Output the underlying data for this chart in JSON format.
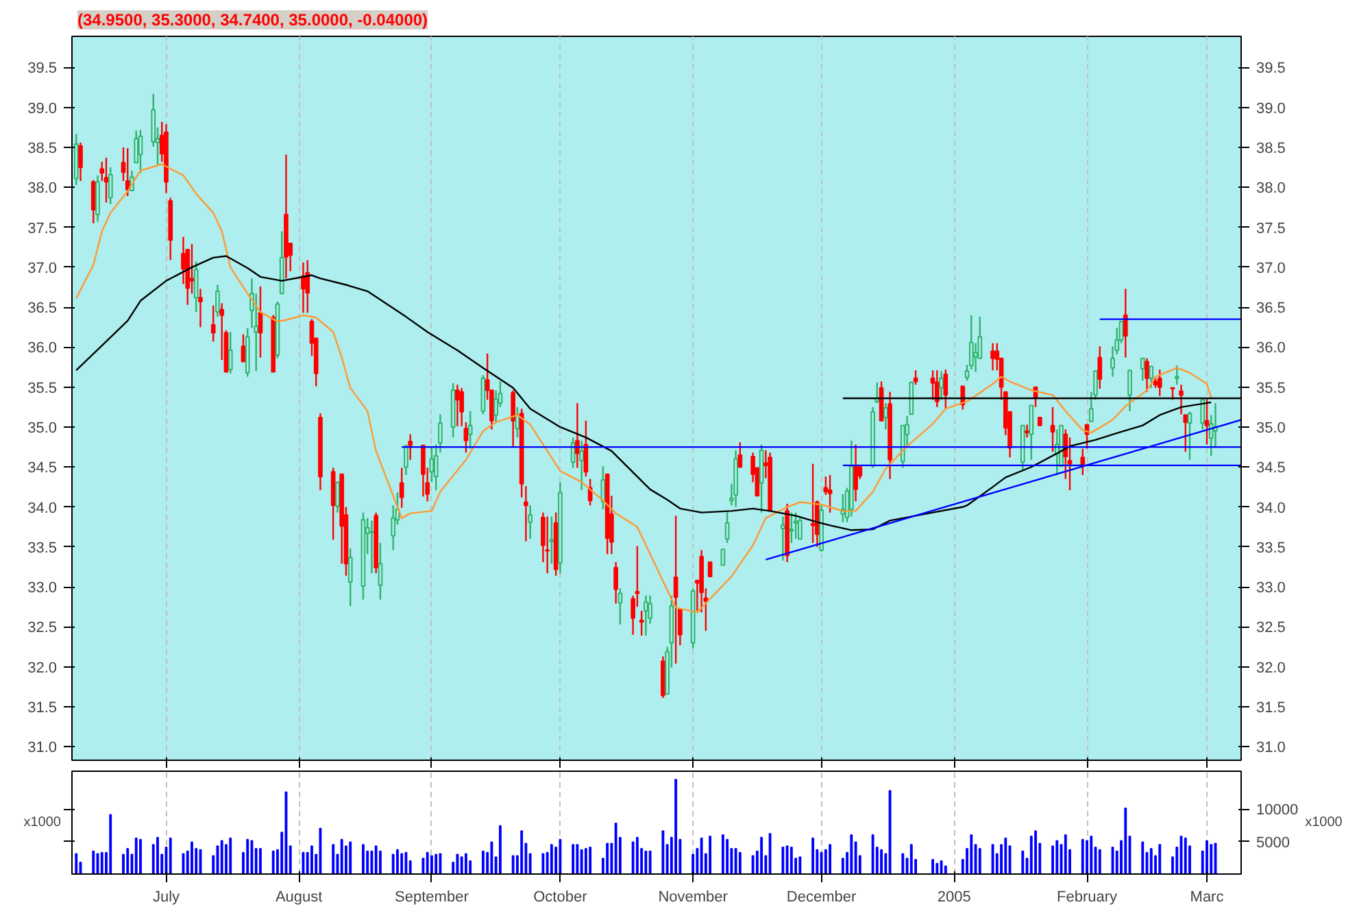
{
  "chart_data": [
    {
      "type": "candlestick",
      "title": "(34.9500, 35.3000, 34.7400, 35.0000, -0.04000)",
      "x": [
        "2004-06-10",
        "2004-06-11",
        "2004-06-14",
        "2004-06-15",
        "2004-06-16",
        "2004-06-17",
        "2004-06-18",
        "2004-06-21",
        "2004-06-22",
        "2004-06-23",
        "2004-06-24",
        "2004-06-25",
        "2004-06-28",
        "2004-06-29",
        "2004-06-30",
        "2004-07-01",
        "2004-07-02",
        "2004-07-05",
        "2004-07-06",
        "2004-07-07",
        "2004-07-08",
        "2004-07-09",
        "2004-07-12",
        "2004-07-13",
        "2004-07-14",
        "2004-07-15",
        "2004-07-16",
        "2004-07-19",
        "2004-07-20",
        "2004-07-21",
        "2004-07-22",
        "2004-07-23",
        "2004-07-26",
        "2004-07-27",
        "2004-07-28",
        "2004-07-29",
        "2004-07-30",
        "2004-08-02",
        "2004-08-03",
        "2004-08-04",
        "2004-08-05",
        "2004-08-06",
        "2004-08-09",
        "2004-08-10",
        "2004-08-11",
        "2004-08-12",
        "2004-08-13",
        "2004-08-16",
        "2004-08-17",
        "2004-08-18",
        "2004-08-19",
        "2004-08-20",
        "2004-08-23",
        "2004-08-24",
        "2004-08-25",
        "2004-08-26",
        "2004-08-27",
        "2004-08-30",
        "2004-08-31",
        "2004-09-01",
        "2004-09-02",
        "2004-09-03",
        "2004-09-06",
        "2004-09-07",
        "2004-09-08",
        "2004-09-09",
        "2004-09-10",
        "2004-09-13",
        "2004-09-14",
        "2004-09-15",
        "2004-09-16",
        "2004-09-17",
        "2004-09-20",
        "2004-09-21",
        "2004-09-22",
        "2004-09-23",
        "2004-09-24",
        "2004-09-27",
        "2004-09-28",
        "2004-09-29",
        "2004-09-30",
        "2004-10-01",
        "2004-10-04",
        "2004-10-05",
        "2004-10-06",
        "2004-10-07",
        "2004-10-08",
        "2004-10-11",
        "2004-10-12",
        "2004-10-13",
        "2004-10-14",
        "2004-10-15",
        "2004-10-18",
        "2004-10-19",
        "2004-10-20",
        "2004-10-21",
        "2004-10-22",
        "2004-10-25",
        "2004-10-26",
        "2004-10-27",
        "2004-10-28",
        "2004-10-29",
        "2004-11-01",
        "2004-11-02",
        "2004-11-03",
        "2004-11-04",
        "2004-11-05",
        "2004-11-08",
        "2004-11-09",
        "2004-11-10",
        "2004-11-11",
        "2004-11-12",
        "2004-11-15",
        "2004-11-16",
        "2004-11-17",
        "2004-11-18",
        "2004-11-19",
        "2004-11-22",
        "2004-11-23",
        "2004-11-24",
        "2004-11-25",
        "2004-11-26",
        "2004-11-29",
        "2004-11-30",
        "2004-12-01",
        "2004-12-02",
        "2004-12-03",
        "2004-12-06",
        "2004-12-07",
        "2004-12-08",
        "2004-12-09",
        "2004-12-10",
        "2004-12-13",
        "2004-12-14",
        "2004-12-15",
        "2004-12-16",
        "2004-12-17",
        "2004-12-20",
        "2004-12-21",
        "2004-12-22",
        "2004-12-23",
        "2004-12-27",
        "2004-12-28",
        "2004-12-29",
        "2004-12-30",
        "2005-01-03",
        "2005-01-04",
        "2005-01-05",
        "2005-01-06",
        "2005-01-07",
        "2005-01-10",
        "2005-01-11",
        "2005-01-12",
        "2005-01-13",
        "2005-01-14",
        "2005-01-17",
        "2005-01-18",
        "2005-01-19",
        "2005-01-20",
        "2005-01-21",
        "2005-01-24",
        "2005-01-25",
        "2005-01-26",
        "2005-01-27",
        "2005-01-28",
        "2005-01-31",
        "2005-02-01",
        "2005-02-02",
        "2005-02-03",
        "2005-02-04",
        "2005-02-07",
        "2005-02-08",
        "2005-02-09",
        "2005-02-10",
        "2005-02-11",
        "2005-02-14",
        "2005-02-15",
        "2005-02-16",
        "2005-02-17",
        "2005-02-18",
        "2005-02-21",
        "2005-02-22",
        "2005-02-23",
        "2005-02-24",
        "2005-02-25",
        "2005-02-28",
        "2005-03-01",
        "2005-03-02",
        "2005-03-03"
      ],
      "ohlc": [
        [
          38.11,
          38.67,
          38.03,
          38.54
        ],
        [
          38.52,
          38.56,
          38.08,
          38.25
        ],
        [
          38.07,
          38.09,
          37.55,
          37.72
        ],
        [
          37.66,
          38.15,
          37.57,
          38.07
        ],
        [
          38.23,
          38.32,
          38.08,
          38.18
        ],
        [
          38.12,
          38.37,
          37.81,
          38.07
        ],
        [
          37.87,
          38.25,
          37.79,
          38.16
        ],
        [
          38.31,
          38.5,
          38.08,
          38.19
        ],
        [
          38.08,
          38.49,
          37.89,
          37.97
        ],
        [
          37.96,
          38.21,
          37.96,
          38.13
        ],
        [
          38.31,
          38.71,
          38.31,
          38.61
        ],
        [
          38.41,
          38.72,
          38.18,
          38.64
        ],
        [
          38.57,
          39.17,
          38.51,
          38.97
        ],
        [
          38.56,
          38.75,
          38.27,
          38.61
        ],
        [
          38.65,
          38.82,
          38.32,
          38.42
        ],
        [
          38.69,
          38.79,
          37.93,
          38.07
        ],
        [
          37.83,
          37.87,
          37.09,
          37.34
        ],
        [
          37.17,
          37.38,
          36.79,
          36.98
        ],
        [
          37.22,
          37.23,
          36.53,
          36.74
        ],
        [
          36.86,
          37.29,
          36.67,
          36.83
        ],
        [
          36.62,
          37.07,
          36.44,
          36.97
        ],
        [
          36.62,
          36.73,
          36.25,
          36.57
        ],
        [
          36.28,
          36.52,
          36.07,
          36.18
        ],
        [
          36.44,
          36.78,
          36.38,
          36.7
        ],
        [
          36.47,
          36.55,
          35.84,
          36.4
        ],
        [
          36.18,
          36.21,
          35.69,
          35.69
        ],
        [
          35.72,
          36.19,
          35.67,
          35.96
        ],
        [
          36.01,
          36.16,
          35.82,
          35.82
        ],
        [
          35.68,
          36.24,
          35.63,
          36.13
        ],
        [
          36.46,
          36.86,
          36.24,
          36.67
        ],
        [
          36.19,
          36.67,
          35.7,
          36.26
        ],
        [
          36.43,
          36.76,
          35.87,
          36.18
        ],
        [
          36.37,
          36.4,
          35.69,
          35.69
        ],
        [
          35.9,
          36.57,
          35.86,
          36.54
        ],
        [
          36.67,
          37.45,
          36.67,
          37.12
        ],
        [
          37.66,
          38.41,
          36.86,
          37.13
        ],
        [
          37.3,
          37.3,
          36.95,
          37.15
        ],
        [
          36.89,
          37.06,
          36.43,
          36.73
        ],
        [
          36.93,
          37.09,
          36.43,
          36.68
        ],
        [
          36.32,
          36.35,
          35.89,
          36.05
        ],
        [
          36.11,
          36.11,
          35.51,
          35.67
        ],
        [
          35.12,
          35.17,
          34.21,
          34.38
        ],
        [
          34.44,
          34.49,
          33.59,
          34.02
        ],
        [
          34.01,
          34.31,
          33.93,
          34.31
        ],
        [
          34.41,
          34.41,
          33.29,
          33.76
        ],
        [
          33.9,
          34.0,
          33.14,
          33.29
        ],
        [
          33.06,
          33.48,
          32.76,
          33.37
        ],
        [
          33.01,
          33.93,
          32.84,
          33.84
        ],
        [
          33.67,
          33.86,
          33.41,
          33.74
        ],
        [
          33.68,
          33.83,
          33.17,
          33.69
        ],
        [
          33.89,
          33.93,
          33.17,
          33.24
        ],
        [
          33.02,
          33.55,
          32.84,
          33.29
        ],
        [
          33.64,
          34.02,
          33.46,
          33.86
        ],
        [
          33.84,
          34.18,
          33.78,
          33.97
        ],
        [
          34.3,
          34.49,
          33.99,
          34.12
        ],
        [
          34.5,
          34.78,
          34.4,
          34.76
        ],
        [
          34.82,
          34.91,
          34.59,
          34.77
        ],
        [
          34.77,
          34.77,
          34.13,
          34.41
        ],
        [
          34.3,
          34.49,
          34.07,
          34.16
        ],
        [
          34.44,
          34.74,
          34.31,
          34.6
        ],
        [
          34.38,
          34.78,
          34.21,
          34.64
        ],
        [
          34.8,
          35.16,
          34.68,
          35.05
        ],
        [
          35.0,
          35.55,
          34.87,
          35.46
        ],
        [
          35.46,
          35.53,
          35.01,
          35.34
        ],
        [
          35.44,
          35.49,
          35.01,
          35.19
        ],
        [
          34.98,
          35.06,
          34.68,
          34.83
        ],
        [
          34.91,
          35.2,
          34.73,
          35.02
        ],
        [
          35.2,
          35.65,
          35.16,
          35.61
        ],
        [
          35.59,
          35.92,
          35.34,
          35.46
        ],
        [
          35.46,
          35.46,
          34.97,
          35.08
        ],
        [
          35.15,
          35.46,
          35.06,
          35.35
        ],
        [
          35.3,
          35.57,
          35.25,
          35.42
        ],
        [
          35.43,
          35.46,
          34.75,
          35.08
        ],
        [
          34.98,
          35.25,
          34.87,
          35.15
        ],
        [
          35.17,
          35.23,
          34.12,
          34.29
        ],
        [
          34.06,
          34.26,
          33.57,
          34.02
        ],
        [
          33.81,
          34.02,
          33.6,
          33.9
        ],
        [
          33.87,
          33.93,
          33.31,
          33.52
        ],
        [
          33.46,
          33.88,
          33.17,
          33.45
        ],
        [
          33.57,
          33.88,
          33.29,
          33.59
        ],
        [
          33.8,
          33.93,
          33.14,
          33.22
        ],
        [
          33.3,
          34.31,
          33.17,
          34.18
        ],
        [
          34.56,
          34.87,
          34.49,
          34.8
        ],
        [
          34.83,
          35.3,
          34.49,
          34.67
        ],
        [
          34.58,
          34.83,
          34.21,
          34.7
        ],
        [
          34.78,
          35.08,
          34.38,
          34.44
        ],
        [
          34.24,
          34.35,
          34.02,
          34.08
        ],
        [
          34.07,
          34.51,
          33.97,
          34.34
        ],
        [
          34.41,
          34.41,
          33.41,
          33.61
        ],
        [
          33.91,
          34.14,
          33.41,
          33.56
        ],
        [
          33.24,
          33.31,
          32.79,
          32.97
        ],
        [
          32.8,
          32.98,
          32.53,
          32.92
        ],
        [
          32.85,
          32.89,
          32.4,
          32.61
        ],
        [
          32.94,
          33.51,
          32.75,
          32.92
        ],
        [
          32.58,
          32.7,
          32.39,
          32.56
        ],
        [
          32.7,
          32.89,
          32.39,
          32.81
        ],
        [
          32.61,
          32.89,
          32.54,
          32.79
        ],
        [
          32.07,
          32.13,
          31.61,
          31.64
        ],
        [
          31.66,
          32.25,
          31.66,
          32.19
        ],
        [
          32.3,
          32.89,
          31.99,
          32.76
        ],
        [
          33.12,
          33.89,
          32.04,
          32.87
        ],
        [
          32.72,
          32.72,
          32.27,
          32.4
        ],
        [
          32.3,
          32.98,
          32.23,
          32.95
        ],
        [
          33.08,
          33.08,
          32.7,
          33.05
        ],
        [
          33.38,
          33.46,
          32.68,
          32.93
        ],
        [
          32.86,
          32.98,
          32.45,
          32.82
        ],
        [
          33.31,
          33.31,
          33.13,
          33.13
        ],
        [
          33.27,
          33.47,
          33.27,
          33.47
        ],
        [
          33.6,
          33.93,
          33.55,
          33.8
        ],
        [
          34.08,
          34.29,
          34.02,
          34.11
        ],
        [
          34.15,
          34.71,
          34.0,
          34.6
        ],
        [
          34.65,
          34.81,
          34.49,
          34.5
        ],
        [
          34.63,
          34.68,
          34.31,
          34.41
        ],
        [
          34.49,
          34.49,
          34.14,
          34.14
        ],
        [
          34.3,
          34.78,
          33.93,
          34.71
        ],
        [
          34.55,
          34.71,
          34.36,
          34.52
        ],
        [
          34.62,
          34.68,
          33.95,
          33.95
        ],
        [
          33.73,
          33.88,
          33.33,
          33.77
        ],
        [
          33.95,
          34.04,
          33.31,
          33.39
        ],
        [
          33.7,
          33.93,
          33.55,
          33.72
        ],
        [
          33.8,
          33.93,
          33.6,
          33.82
        ],
        [
          33.6,
          33.86,
          33.6,
          33.83
        ],
        [
          33.79,
          34.54,
          33.55,
          33.77
        ],
        [
          34.06,
          34.08,
          33.5,
          33.66
        ],
        [
          33.46,
          34.02,
          33.44,
          33.96
        ],
        [
          34.24,
          34.38,
          34.15,
          34.19
        ],
        [
          34.21,
          34.4,
          33.93,
          34.17
        ],
        [
          33.91,
          34.16,
          33.81,
          33.97
        ],
        [
          33.87,
          34.24,
          33.81,
          34.2
        ],
        [
          33.97,
          34.83,
          33.88,
          34.51
        ],
        [
          34.51,
          34.78,
          34.07,
          34.22
        ],
        [
          34.5,
          34.5,
          34.35,
          34.39
        ],
        [
          34.51,
          35.25,
          34.49,
          35.19
        ],
        [
          35.32,
          35.56,
          35.3,
          35.36
        ],
        [
          35.49,
          35.57,
          35.08,
          35.08
        ],
        [
          35.12,
          35.3,
          34.97,
          35.24
        ],
        [
          35.29,
          35.44,
          34.35,
          34.59
        ],
        [
          34.57,
          35.02,
          34.49,
          35.02
        ],
        [
          34.91,
          35.14,
          34.76,
          35.03
        ],
        [
          35.16,
          35.56,
          35.16,
          35.56
        ],
        [
          35.61,
          35.71,
          35.53,
          35.57
        ],
        [
          35.61,
          35.71,
          35.34,
          35.55
        ],
        [
          35.56,
          35.71,
          35.25,
          35.32
        ],
        [
          35.49,
          35.7,
          35.34,
          35.61
        ],
        [
          35.66,
          35.72,
          35.23,
          35.4
        ],
        [
          35.51,
          35.51,
          35.22,
          35.28
        ],
        [
          35.62,
          35.78,
          35.58,
          35.7
        ],
        [
          35.77,
          36.4,
          35.72,
          36.06
        ],
        [
          35.88,
          36.05,
          35.69,
          35.93
        ],
        [
          35.86,
          36.38,
          35.86,
          36.13
        ],
        [
          35.95,
          36.05,
          35.71,
          35.86
        ],
        [
          35.95,
          36.05,
          35.71,
          35.85
        ],
        [
          35.86,
          35.86,
          35.34,
          35.5
        ],
        [
          35.44,
          35.44,
          34.9,
          34.99
        ],
        [
          35.19,
          35.19,
          34.62,
          34.74
        ],
        [
          34.56,
          35.02,
          34.45,
          35.02
        ],
        [
          34.95,
          35.03,
          34.87,
          34.93
        ],
        [
          34.91,
          35.27,
          34.59,
          35.27
        ],
        [
          35.5,
          35.5,
          35.25,
          35.36
        ],
        [
          35.12,
          35.12,
          35.02,
          35.02
        ],
        [
          35.02,
          35.25,
          34.69,
          34.94
        ],
        [
          34.67,
          34.97,
          34.4,
          34.78
        ],
        [
          34.51,
          35.02,
          34.51,
          35.02
        ],
        [
          34.91,
          34.97,
          34.35,
          34.63
        ],
        [
          34.58,
          34.87,
          34.21,
          34.54
        ],
        [
          34.62,
          34.73,
          34.4,
          34.53
        ],
        [
          35.03,
          35.03,
          34.73,
          34.91
        ],
        [
          35.07,
          35.44,
          35.07,
          35.23
        ],
        [
          35.4,
          35.7,
          35.34,
          35.7
        ],
        [
          35.87,
          36.01,
          35.48,
          35.6
        ],
        [
          35.74,
          36.01,
          35.63,
          35.86
        ],
        [
          35.96,
          36.24,
          35.91,
          36.09
        ],
        [
          36.09,
          36.32,
          36.05,
          36.32
        ],
        [
          36.4,
          36.73,
          35.87,
          36.14
        ],
        [
          35.4,
          35.71,
          35.2,
          35.71
        ],
        [
          35.73,
          35.86,
          35.58,
          35.86
        ],
        [
          35.82,
          35.86,
          35.44,
          35.61
        ],
        [
          35.61,
          35.76,
          35.49,
          35.76
        ],
        [
          35.57,
          35.61,
          35.49,
          35.53
        ],
        [
          35.61,
          35.72,
          35.39,
          35.5
        ],
        [
          35.49,
          35.49,
          35.34,
          35.48
        ],
        [
          35.61,
          35.77,
          35.53,
          35.63
        ],
        [
          35.45,
          35.53,
          35.16,
          35.4
        ],
        [
          35.15,
          35.16,
          34.69,
          35.06
        ],
        [
          35.05,
          35.19,
          34.59,
          35.17
        ],
        [
          35.05,
          35.34,
          34.97,
          35.34
        ],
        [
          35.08,
          35.35,
          34.78,
          35.02
        ],
        [
          34.86,
          35.15,
          34.64,
          35.04
        ],
        [
          34.95,
          35.3,
          34.74,
          35.0
        ]
      ],
      "series": [
        {
          "type": "line",
          "color": "#ff9933",
          "x": [
            "2004-06-10",
            "2004-06-14",
            "2004-06-16",
            "2004-06-18",
            "2004-06-22",
            "2004-06-25",
            "2004-06-30",
            "2004-07-05",
            "2004-07-08",
            "2004-07-12",
            "2004-07-14",
            "2004-07-16",
            "2004-07-20",
            "2004-07-23",
            "2004-07-27",
            "2004-07-29",
            "2004-08-02",
            "2004-08-05",
            "2004-08-09",
            "2004-08-11",
            "2004-08-13",
            "2004-08-17",
            "2004-08-19",
            "2004-08-23",
            "2004-08-25",
            "2004-08-27",
            "2004-09-01",
            "2004-09-03",
            "2004-09-09",
            "2004-09-13",
            "2004-09-16",
            "2004-09-21",
            "2004-09-24",
            "2004-09-28",
            "2004-10-01",
            "2004-10-06",
            "2004-10-11",
            "2004-10-14",
            "2004-10-19",
            "2004-10-22",
            "2004-10-26",
            "2004-10-28",
            "2004-11-02",
            "2004-11-05",
            "2004-11-10",
            "2004-11-15",
            "2004-11-18",
            "2004-11-23",
            "2004-11-26",
            "2004-12-01",
            "2004-12-06",
            "2004-12-09",
            "2004-12-13",
            "2004-12-16",
            "2004-12-21",
            "2004-12-27",
            "2004-12-30",
            "2005-01-04",
            "2005-01-10",
            "2005-01-12",
            "2005-01-14",
            "2005-01-19",
            "2005-01-24",
            "2005-01-27",
            "2005-01-31",
            "2005-02-02",
            "2005-02-07",
            "2005-02-10",
            "2005-02-15",
            "2005-02-17",
            "2005-02-22",
            "2005-02-25",
            "2005-03-01",
            "2005-03-02"
          ],
          "values": [
            36.61,
            37.03,
            37.45,
            37.68,
            37.95,
            38.21,
            38.29,
            38.15,
            37.92,
            37.68,
            37.45,
            37.0,
            36.67,
            36.44,
            36.32,
            36.34,
            36.4,
            36.37,
            36.19,
            35.87,
            35.49,
            35.2,
            34.7,
            34.14,
            33.86,
            33.92,
            33.95,
            34.19,
            34.59,
            34.95,
            35.06,
            35.15,
            35.03,
            34.7,
            34.45,
            34.31,
            34.08,
            33.92,
            33.75,
            33.41,
            32.96,
            32.74,
            32.68,
            32.85,
            33.13,
            33.52,
            33.86,
            34.0,
            34.06,
            34.03,
            33.95,
            33.95,
            34.19,
            34.48,
            34.76,
            35.04,
            35.23,
            35.32,
            35.54,
            35.63,
            35.57,
            35.46,
            35.4,
            35.2,
            34.96,
            34.93,
            35.09,
            35.26,
            35.46,
            35.63,
            35.74,
            35.68,
            35.54,
            35.37
          ]
        },
        {
          "type": "line",
          "color": "#000000",
          "x": [
            "2004-06-10",
            "2004-06-16",
            "2004-06-22",
            "2004-06-25",
            "2004-07-01",
            "2004-07-07",
            "2004-07-12",
            "2004-07-15",
            "2004-07-20",
            "2004-07-23",
            "2004-07-28",
            "2004-08-04",
            "2004-08-06",
            "2004-08-12",
            "2004-08-17",
            "2004-08-26",
            "2004-08-31",
            "2004-09-07",
            "2004-09-13",
            "2004-09-20",
            "2004-09-24",
            "2004-10-01",
            "2004-10-07",
            "2004-10-13",
            "2004-10-22",
            "2004-10-26",
            "2004-10-29",
            "2004-11-03",
            "2004-11-10",
            "2004-11-15",
            "2004-11-19",
            "2004-11-25",
            "2004-11-30",
            "2004-12-03",
            "2004-12-08",
            "2004-12-13",
            "2004-12-17",
            "2004-12-27",
            "2005-01-03",
            "2005-01-04",
            "2005-01-10",
            "2005-01-13",
            "2005-01-19",
            "2005-01-25",
            "2005-01-28",
            "2005-02-03",
            "2005-02-09",
            "2005-02-14",
            "2005-02-18",
            "2005-02-23",
            "2005-03-02"
          ],
          "values": [
            35.71,
            36.02,
            36.33,
            36.58,
            36.83,
            37.0,
            37.12,
            37.14,
            36.99,
            36.88,
            36.83,
            36.9,
            36.86,
            36.78,
            36.7,
            36.38,
            36.19,
            35.96,
            35.74,
            35.49,
            35.23,
            35.0,
            34.87,
            34.7,
            34.22,
            34.09,
            33.98,
            33.93,
            33.95,
            33.98,
            33.95,
            33.89,
            33.81,
            33.77,
            33.71,
            33.72,
            33.83,
            33.93,
            34.0,
            34.02,
            34.25,
            34.37,
            34.5,
            34.67,
            34.76,
            34.84,
            34.94,
            35.02,
            35.15,
            35.25,
            35.31
          ]
        },
        {
          "type": "line",
          "color": "#0000ff",
          "x": [
            "2004-08-25",
            "2005-03-09"
          ],
          "values": [
            34.75,
            34.75
          ]
        },
        {
          "type": "line",
          "color": "#0000ff",
          "x": [
            "2004-12-06",
            "2005-03-09"
          ],
          "values": [
            34.52,
            34.52
          ]
        },
        {
          "type": "line",
          "color": "#000000",
          "x": [
            "2004-12-06",
            "2005-03-09"
          ],
          "values": [
            35.36,
            35.36
          ]
        },
        {
          "type": "line",
          "color": "#0000ff",
          "x": [
            "2005-02-04",
            "2005-03-09"
          ],
          "values": [
            36.35,
            36.35
          ]
        },
        {
          "type": "line",
          "color": "#0000ff",
          "x": [
            "2004-11-18",
            "2005-03-09"
          ],
          "values": [
            33.34,
            35.09
          ]
        }
      ],
      "xlim": [
        "2004-06-09",
        "2005-03-09"
      ],
      "ylim": [
        30.83,
        39.89
      ],
      "yticks": [
        {
          "value": 31,
          "label": "31.0"
        },
        {
          "value": 31.5,
          "label": "31.5"
        },
        {
          "value": 32,
          "label": "32.0"
        },
        {
          "value": 32.5,
          "label": "32.5"
        },
        {
          "value": 33,
          "label": "33.0"
        },
        {
          "value": 33.5,
          "label": "33.5"
        },
        {
          "value": 34,
          "label": "34.0"
        },
        {
          "value": 34.5,
          "label": "34.5"
        },
        {
          "value": 35,
          "label": "35.0"
        },
        {
          "value": 35.5,
          "label": "35.5"
        },
        {
          "value": 36,
          "label": "36.0"
        },
        {
          "value": 36.5,
          "label": "36.5"
        },
        {
          "value": 37,
          "label": "37.0"
        },
        {
          "value": 37.5,
          "label": "37.5"
        },
        {
          "value": 38,
          "label": "38.0"
        },
        {
          "value": 38.5,
          "label": "38.5"
        },
        {
          "value": 39,
          "label": "39.0"
        },
        {
          "value": 39.5,
          "label": "39.5"
        }
      ],
      "y2lim": [
        30.83,
        39.89
      ],
      "y2ticks": [
        {
          "value": 31,
          "label": "31.0"
        },
        {
          "value": 31.5,
          "label": "31.5"
        },
        {
          "value": 32,
          "label": "32.0"
        },
        {
          "value": 32.5,
          "label": "32.5"
        },
        {
          "value": 33,
          "label": "33.0"
        },
        {
          "value": 33.5,
          "label": "33.5"
        },
        {
          "value": 34,
          "label": "34.0"
        },
        {
          "value": 34.5,
          "label": "34.5"
        },
        {
          "value": 35,
          "label": "35.0"
        },
        {
          "value": 35.5,
          "label": "35.5"
        },
        {
          "value": 36,
          "label": "36.0"
        },
        {
          "value": 36.5,
          "label": "36.5"
        },
        {
          "value": 37,
          "label": "37.0"
        },
        {
          "value": 37.5,
          "label": "37.5"
        },
        {
          "value": 38,
          "label": "38.0"
        },
        {
          "value": 38.5,
          "label": "38.5"
        },
        {
          "value": 39,
          "label": "39.0"
        },
        {
          "value": 39.5,
          "label": "39.5"
        }
      ],
      "grid": "x",
      "tick_labels": "y"
    },
    {
      "type": "bar",
      "x": [
        "2004-06-10",
        "2004-06-11",
        "2004-06-14",
        "2004-06-15",
        "2004-06-16",
        "2004-06-17",
        "2004-06-18",
        "2004-06-21",
        "2004-06-22",
        "2004-06-23",
        "2004-06-24",
        "2004-06-25",
        "2004-06-28",
        "2004-06-29",
        "2004-06-30",
        "2004-07-01",
        "2004-07-02",
        "2004-07-05",
        "2004-07-06",
        "2004-07-07",
        "2004-07-08",
        "2004-07-09",
        "2004-07-12",
        "2004-07-13",
        "2004-07-14",
        "2004-07-15",
        "2004-07-16",
        "2004-07-19",
        "2004-07-20",
        "2004-07-21",
        "2004-07-22",
        "2004-07-23",
        "2004-07-26",
        "2004-07-27",
        "2004-07-28",
        "2004-07-29",
        "2004-07-30",
        "2004-08-02",
        "2004-08-03",
        "2004-08-04",
        "2004-08-05",
        "2004-08-06",
        "2004-08-09",
        "2004-08-10",
        "2004-08-11",
        "2004-08-12",
        "2004-08-13",
        "2004-08-16",
        "2004-08-17",
        "2004-08-18",
        "2004-08-19",
        "2004-08-20",
        "2004-08-23",
        "2004-08-24",
        "2004-08-25",
        "2004-08-26",
        "2004-08-27",
        "2004-08-30",
        "2004-08-31",
        "2004-09-01",
        "2004-09-02",
        "2004-09-03",
        "2004-09-06",
        "2004-09-07",
        "2004-09-08",
        "2004-09-09",
        "2004-09-10",
        "2004-09-13",
        "2004-09-14",
        "2004-09-15",
        "2004-09-16",
        "2004-09-17",
        "2004-09-20",
        "2004-09-21",
        "2004-09-22",
        "2004-09-23",
        "2004-09-24",
        "2004-09-27",
        "2004-09-28",
        "2004-09-29",
        "2004-09-30",
        "2004-10-01",
        "2004-10-04",
        "2004-10-05",
        "2004-10-06",
        "2004-10-07",
        "2004-10-08",
        "2004-10-11",
        "2004-10-12",
        "2004-10-13",
        "2004-10-14",
        "2004-10-15",
        "2004-10-18",
        "2004-10-19",
        "2004-10-20",
        "2004-10-21",
        "2004-10-22",
        "2004-10-25",
        "2004-10-26",
        "2004-10-27",
        "2004-10-28",
        "2004-10-29",
        "2004-11-01",
        "2004-11-02",
        "2004-11-03",
        "2004-11-04",
        "2004-11-05",
        "2004-11-08",
        "2004-11-09",
        "2004-11-10",
        "2004-11-11",
        "2004-11-12",
        "2004-11-15",
        "2004-11-16",
        "2004-11-17",
        "2004-11-18",
        "2004-11-19",
        "2004-11-22",
        "2004-11-23",
        "2004-11-24",
        "2004-11-25",
        "2004-11-26",
        "2004-11-29",
        "2004-11-30",
        "2004-12-01",
        "2004-12-02",
        "2004-12-03",
        "2004-12-06",
        "2004-12-07",
        "2004-12-08",
        "2004-12-09",
        "2004-12-10",
        "2004-12-13",
        "2004-12-14",
        "2004-12-15",
        "2004-12-16",
        "2004-12-17",
        "2004-12-20",
        "2004-12-21",
        "2004-12-22",
        "2004-12-23",
        "2004-12-27",
        "2004-12-28",
        "2004-12-29",
        "2004-12-30",
        "2005-01-03",
        "2005-01-04",
        "2005-01-05",
        "2005-01-06",
        "2005-01-07",
        "2005-01-10",
        "2005-01-11",
        "2005-01-12",
        "2005-01-13",
        "2005-01-14",
        "2005-01-17",
        "2005-01-18",
        "2005-01-19",
        "2005-01-20",
        "2005-01-21",
        "2005-01-24",
        "2005-01-25",
        "2005-01-26",
        "2005-01-27",
        "2005-01-28",
        "2005-01-31",
        "2005-02-01",
        "2005-02-02",
        "2005-02-03",
        "2005-02-04",
        "2005-02-07",
        "2005-02-08",
        "2005-02-09",
        "2005-02-10",
        "2005-02-11",
        "2005-02-14",
        "2005-02-15",
        "2005-02-16",
        "2005-02-17",
        "2005-02-18",
        "2005-02-21",
        "2005-02-22",
        "2005-02-23",
        "2005-02-24",
        "2005-02-25",
        "2005-02-28",
        "2005-03-01",
        "2005-03-02",
        "2005-03-03"
      ],
      "series": [
        {
          "color": "#0000ff",
          "axis": "y2",
          "values": [
            3100,
            1800,
            3500,
            3100,
            3300,
            3300,
            9100,
            3000,
            3900,
            3000,
            5500,
            5300,
            4500,
            5600,
            3000,
            4100,
            5500,
            3100,
            3500,
            4900,
            3900,
            3700,
            2800,
            4300,
            5100,
            4500,
            5500,
            3300,
            5300,
            5100,
            3900,
            3900,
            3500,
            3700,
            6400,
            12600,
            4300,
            3300,
            3300,
            4300,
            3000,
            7000,
            4500,
            3000,
            5300,
            4300,
            4900,
            4500,
            3500,
            3500,
            4300,
            3500,
            3000,
            3700,
            3100,
            3300,
            2000,
            2400,
            3300,
            2800,
            3000,
            3100,
            1800,
            3000,
            2600,
            3100,
            2000,
            3500,
            3300,
            4900,
            2600,
            7400,
            2800,
            2800,
            6600,
            4700,
            3100,
            3100,
            3300,
            4500,
            4100,
            5300,
            4500,
            4500,
            3700,
            3900,
            4100,
            2400,
            4700,
            4700,
            7800,
            5600,
            4900,
            5600,
            3900,
            3500,
            3500,
            6600,
            4500,
            5600,
            14500,
            5300,
            3000,
            3900,
            5500,
            3100,
            5800,
            6000,
            5300,
            3900,
            3900,
            3300,
            2800,
            3500,
            5600,
            2800,
            6200,
            4100,
            4300,
            4100,
            2400,
            2600,
            5500,
            3700,
            3300,
            3700,
            4500,
            2400,
            3300,
            6000,
            4900,
            2800,
            6000,
            4100,
            3700,
            3100,
            12800,
            3100,
            2400,
            4500,
            2200,
            2200,
            1600,
            2000,
            1200,
            2200,
            3900,
            6000,
            4500,
            3900,
            4500,
            3100,
            4500,
            5500,
            4300,
            3500,
            2400,
            5800,
            6600,
            4700,
            4300,
            5100,
            4500,
            6000,
            3700,
            5300,
            5100,
            5800,
            4100,
            3700,
            4100,
            3500,
            5100,
            10100,
            5800,
            4900,
            3300,
            3900,
            2800,
            4500,
            2600,
            4100,
            5800,
            5500,
            4300,
            3500,
            5100,
            4500,
            4700
          ]
        }
      ],
      "xlim": [
        "2004-06-09",
        "2005-03-09"
      ],
      "xticks": [
        {
          "value": "2004-07-01",
          "label": "July"
        },
        {
          "value": "2004-08-01",
          "label": "August"
        },
        {
          "value": "2004-09-01",
          "label": "September"
        },
        {
          "value": "2004-10-01",
          "label": "October"
        },
        {
          "value": "2004-11-01",
          "label": "November"
        },
        {
          "value": "2004-12-01",
          "label": "December"
        },
        {
          "value": "2005-01-01",
          "label": "2005"
        },
        {
          "value": "2005-02-01",
          "label": "February"
        },
        {
          "value": "2005-03-01",
          "label": "Marc"
        }
      ],
      "y2lim": [
        0,
        15800
      ],
      "y2ticks": [
        5000,
        10000
      ],
      "grid": "x",
      "annotations": [
        "x1000",
        "x1000"
      ]
    }
  ]
}
